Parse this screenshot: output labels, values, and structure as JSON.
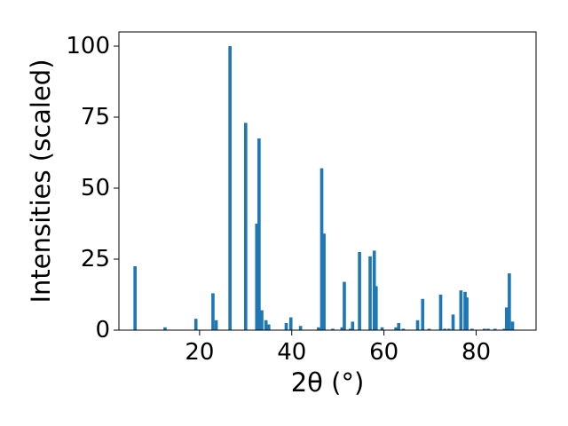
{
  "chart_data": {
    "type": "bar",
    "xlabel": "2θ (°)",
    "ylabel": "Intensities (scaled)",
    "xlim": [
      2.5,
      93
    ],
    "ylim": [
      0,
      105
    ],
    "xticks": [
      20,
      40,
      60,
      80
    ],
    "yticks": [
      0,
      25,
      50,
      75,
      100
    ],
    "bar_color": "#1f77b4",
    "bar_width": 0.7,
    "x": [
      6.0,
      12.5,
      19.2,
      22.9,
      23.6,
      26.6,
      30.0,
      32.4,
      32.9,
      33.5,
      34.4,
      35.0,
      38.8,
      39.8,
      41.9,
      45.8,
      46.5,
      47.0,
      48.9,
      50.9,
      51.4,
      52.7,
      53.2,
      54.7,
      57.0,
      57.9,
      58.3,
      59.6,
      62.6,
      63.2,
      64.2,
      67.3,
      68.4,
      69.8,
      72.3,
      73.2,
      74.1,
      75.0,
      76.7,
      77.6,
      78.0,
      79.1,
      81.8,
      82.6,
      84.1,
      86.1,
      86.6,
      87.2,
      87.9
    ],
    "values": [
      22.5,
      1.0,
      4.0,
      13.0,
      3.5,
      100.0,
      73.0,
      37.5,
      67.5,
      7.0,
      3.5,
      2.0,
      2.5,
      4.5,
      1.5,
      1.0,
      57.0,
      34.0,
      0.5,
      1.0,
      17.0,
      0.5,
      3.0,
      27.5,
      26.0,
      28.0,
      15.5,
      1.0,
      1.0,
      2.5,
      0.5,
      3.5,
      11.0,
      0.5,
      12.5,
      0.5,
      0.5,
      5.5,
      14.0,
      13.5,
      11.5,
      0.5,
      0.5,
      0.5,
      0.5,
      0.5,
      8.0,
      20.0,
      3.0
    ]
  }
}
